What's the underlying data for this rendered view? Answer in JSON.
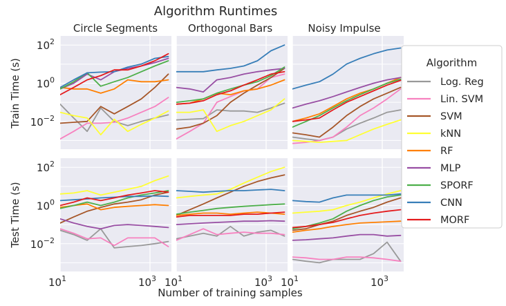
{
  "chart_data": {
    "type": "line",
    "title": "Algorithm Runtimes",
    "xlabel": "Number of training samples",
    "x_scale": "log",
    "y_scale": "log",
    "xlim": [
      10,
      3000
    ],
    "ylim": [
      0.00035,
      300
    ],
    "x_ticks": [
      {
        "base": "10",
        "exp": "1",
        "value": 10
      },
      {
        "base": "10",
        "exp": "3",
        "value": 1000
      }
    ],
    "y_ticks": [
      {
        "base": "10",
        "exp": "−2",
        "value": 0.01
      },
      {
        "base": "10",
        "exp": "0",
        "value": 1
      },
      {
        "base": "10",
        "exp": "2",
        "value": 100
      }
    ],
    "x": [
      10,
      20,
      40,
      80,
      160,
      320,
      640,
      1280,
      2560
    ],
    "columns": [
      "Circle Segments",
      "Orthogonal Bars",
      "Noisy Impulse"
    ],
    "rows": [
      "Train Time (s)",
      "Test Time (s)"
    ],
    "grid": true,
    "legend": {
      "title": "Algorithm",
      "placement": "right",
      "entries": [
        {
          "name": "Log. Reg",
          "color": "#999999"
        },
        {
          "name": "Lin. SVM",
          "color": "#f781bf"
        },
        {
          "name": "SVM",
          "color": "#a65628"
        },
        {
          "name": "kNN",
          "color": "#ffff33"
        },
        {
          "name": "RF",
          "color": "#ff7f00"
        },
        {
          "name": "MLP",
          "color": "#984ea3"
        },
        {
          "name": "SPORF",
          "color": "#4daf4a"
        },
        {
          "name": "CNN",
          "color": "#377eb8"
        },
        {
          "name": "MORF",
          "color": "#e41a1c"
        }
      ]
    },
    "panels": [
      {
        "row": 0,
        "col": 0,
        "series": [
          {
            "name": "Log. Reg",
            "values": [
              0.08,
              0.015,
              0.003,
              0.05,
              0.01,
              0.006,
              0.01,
              0.015,
              0.022
            ]
          },
          {
            "name": "Lin. SVM",
            "values": [
              0.0012,
              0.003,
              0.008,
              0.008,
              0.009,
              0.015,
              0.03,
              0.06,
              0.18
            ]
          },
          {
            "name": "SVM",
            "values": [
              0.008,
              0.009,
              0.01,
              0.06,
              0.025,
              0.06,
              0.15,
              0.6,
              3.0
            ]
          },
          {
            "name": "kNN",
            "values": [
              0.03,
              0.02,
              0.015,
              0.002,
              0.013,
              0.003,
              0.007,
              0.015,
              0.035
            ]
          },
          {
            "name": "RF",
            "values": [
              0.6,
              0.5,
              0.5,
              0.3,
              0.5,
              1.5,
              1.2,
              1.2,
              1.5
            ]
          },
          {
            "name": "MLP",
            "values": [
              0.5,
              1.0,
              3.0,
              1.5,
              4.0,
              6.0,
              8.0,
              12.0,
              20.0
            ]
          },
          {
            "name": "SPORF",
            "values": [
              0.5,
              1.2,
              3.5,
              0.7,
              1.2,
              2.0,
              4.0,
              8.0,
              15.0
            ]
          },
          {
            "name": "CNN",
            "values": [
              0.6,
              1.5,
              3.5,
              3.8,
              4.0,
              7.0,
              10.0,
              20.0,
              25.0
            ]
          },
          {
            "name": "MORF",
            "values": [
              0.25,
              0.6,
              1.5,
              2.5,
              5.0,
              5.0,
              8.0,
              15.0,
              35.0
            ]
          }
        ]
      },
      {
        "row": 0,
        "col": 1,
        "series": [
          {
            "name": "Log. Reg",
            "values": [
              0.012,
              0.013,
              0.014,
              0.04,
              0.035,
              0.035,
              0.03,
              0.05,
              0.09
            ]
          },
          {
            "name": "Lin. SVM",
            "values": [
              0.0012,
              0.003,
              0.008,
              0.1,
              0.2,
              0.4,
              0.5,
              2.0,
              3.0
            ]
          },
          {
            "name": "SVM",
            "values": [
              0.004,
              0.005,
              0.008,
              0.02,
              0.1,
              0.3,
              0.8,
              2.0,
              6.0
            ]
          },
          {
            "name": "kNN",
            "values": [
              0.03,
              0.03,
              0.04,
              0.003,
              0.006,
              0.01,
              0.02,
              0.04,
              0.15
            ]
          },
          {
            "name": "RF",
            "values": [
              0.08,
              0.09,
              0.15,
              0.3,
              0.25,
              0.4,
              0.5,
              0.8,
              1.5
            ]
          },
          {
            "name": "MLP",
            "values": [
              0.6,
              0.5,
              0.35,
              1.5,
              2.0,
              3.0,
              4.0,
              5.0,
              6.0
            ]
          },
          {
            "name": "SPORF",
            "values": [
              0.1,
              0.12,
              0.15,
              0.3,
              0.5,
              0.8,
              1.2,
              2.5,
              7.0
            ]
          },
          {
            "name": "CNN",
            "values": [
              4.0,
              4.0,
              4.0,
              5.0,
              6.0,
              8.0,
              15.0,
              50.0,
              100.0
            ]
          },
          {
            "name": "MORF",
            "values": [
              0.08,
              0.09,
              0.12,
              0.25,
              0.4,
              0.8,
              1.5,
              3.0,
              4.0
            ]
          }
        ]
      },
      {
        "row": 0,
        "col": 2,
        "series": [
          {
            "name": "Log. Reg",
            "values": [
              0.0015,
              0.0012,
              0.001,
              0.0015,
              0.004,
              0.008,
              0.015,
              0.03,
              0.04
            ]
          },
          {
            "name": "Lin. SVM",
            "values": [
              0.0007,
              0.0008,
              0.001,
              0.0015,
              0.005,
              0.02,
              0.05,
              0.15,
              0.5
            ]
          },
          {
            "name": "SVM",
            "values": [
              0.0025,
              0.002,
              0.0015,
              0.005,
              0.02,
              0.06,
              0.15,
              0.3,
              0.6
            ]
          },
          {
            "name": "kNN",
            "values": [
              0.001,
              0.0009,
              0.0008,
              0.0009,
              0.001,
              0.002,
              0.004,
              0.007,
              0.012
            ]
          },
          {
            "name": "RF",
            "values": [
              0.01,
              0.015,
              0.025,
              0.06,
              0.15,
              0.3,
              0.5,
              1.0,
              2.0
            ]
          },
          {
            "name": "MLP",
            "values": [
              0.05,
              0.08,
              0.12,
              0.2,
              0.35,
              0.6,
              1.0,
              1.5,
              2.0
            ]
          },
          {
            "name": "SPORF",
            "values": [
              0.005,
              0.01,
              0.02,
              0.05,
              0.12,
              0.25,
              0.5,
              1.0,
              1.6
            ]
          },
          {
            "name": "CNN",
            "values": [
              0.5,
              0.8,
              1.2,
              3.0,
              10.0,
              20.0,
              35.0,
              55.0,
              70.0
            ]
          },
          {
            "name": "MORF",
            "values": [
              0.01,
              0.012,
              0.015,
              0.04,
              0.1,
              0.2,
              0.4,
              0.8,
              1.4
            ]
          }
        ]
      },
      {
        "row": 1,
        "col": 0,
        "series": [
          {
            "name": "Log. Reg",
            "values": [
              0.05,
              0.03,
              0.015,
              0.06,
              0.006,
              0.007,
              0.008,
              0.01,
              0.013
            ]
          },
          {
            "name": "Lin. SVM",
            "values": [
              0.06,
              0.035,
              0.018,
              0.02,
              0.008,
              0.02,
              0.02,
              0.02,
              0.007
            ]
          },
          {
            "name": "SVM",
            "values": [
              0.12,
              0.25,
              0.5,
              0.8,
              1.2,
              1.5,
              2.0,
              3.5,
              5.0
            ]
          },
          {
            "name": "kNN",
            "values": [
              4.0,
              4.5,
              6.0,
              3.5,
              5.0,
              7.0,
              10.0,
              20.0,
              35.0
            ]
          },
          {
            "name": "RF",
            "values": [
              0.8,
              1.0,
              1.2,
              0.6,
              0.8,
              0.9,
              1.0,
              1.1,
              1.0
            ]
          },
          {
            "name": "MLP",
            "values": [
              0.2,
              0.12,
              0.08,
              0.06,
              0.09,
              0.1,
              0.09,
              0.08,
              0.07
            ]
          },
          {
            "name": "SPORF",
            "values": [
              0.7,
              1.0,
              1.5,
              1.0,
              1.5,
              2.5,
              3.5,
              4.5,
              6.0
            ]
          },
          {
            "name": "CNN",
            "values": [
              1.8,
              2.0,
              2.2,
              2.5,
              2.7,
              3.0,
              3.0,
              3.2,
              3.0
            ]
          },
          {
            "name": "MORF",
            "values": [
              1.0,
              1.5,
              2.5,
              1.8,
              2.5,
              3.5,
              4.5,
              6.0,
              5.0
            ]
          }
        ]
      },
      {
        "row": 1,
        "col": 1,
        "series": [
          {
            "name": "Log. Reg",
            "values": [
              0.018,
              0.025,
              0.035,
              0.025,
              0.08,
              0.025,
              0.04,
              0.05,
              0.025
            ]
          },
          {
            "name": "Lin. SVM",
            "values": [
              0.015,
              0.03,
              0.06,
              0.03,
              0.035,
              0.04,
              0.035,
              0.035,
              0.03
            ]
          },
          {
            "name": "SVM",
            "values": [
              0.3,
              0.6,
              1.2,
              2.5,
              5.0,
              10.0,
              18.0,
              28.0,
              40.0
            ]
          },
          {
            "name": "kNN",
            "values": [
              2.5,
              3.0,
              3.5,
              4.0,
              7.0,
              15.0,
              30.0,
              60.0,
              100.0
            ]
          },
          {
            "name": "RF",
            "values": [
              0.3,
              0.35,
              0.4,
              0.4,
              0.35,
              0.4,
              0.45,
              0.4,
              0.35
            ]
          },
          {
            "name": "MLP",
            "values": [
              0.1,
              0.11,
              0.12,
              0.13,
              0.14,
              0.15,
              0.15,
              0.16,
              0.15
            ]
          },
          {
            "name": "SPORF",
            "values": [
              0.35,
              0.45,
              0.55,
              0.7,
              0.8,
              0.9,
              1.0,
              1.1,
              1.2
            ]
          },
          {
            "name": "CNN",
            "values": [
              6.0,
              5.5,
              5.0,
              5.5,
              6.0,
              6.0,
              6.5,
              7.0,
              6.0
            ]
          },
          {
            "name": "MORF",
            "values": [
              0.25,
              0.3,
              0.3,
              0.3,
              0.3,
              0.35,
              0.35,
              0.4,
              0.45
            ]
          }
        ]
      },
      {
        "row": 1,
        "col": 2,
        "series": [
          {
            "name": "Log. Reg",
            "values": [
              0.0015,
              0.0012,
              0.001,
              0.0015,
              0.0015,
              0.0015,
              0.003,
              0.012,
              0.0012
            ]
          },
          {
            "name": "Lin. SVM",
            "values": [
              0.002,
              0.0018,
              0.0015,
              0.0015,
              0.002,
              0.002,
              0.0018,
              0.0015,
              0.0012
            ]
          },
          {
            "name": "SVM",
            "values": [
              0.05,
              0.06,
              0.1,
              0.15,
              0.3,
              0.5,
              0.8,
              1.5,
              2.5
            ]
          },
          {
            "name": "kNN",
            "values": [
              0.4,
              0.45,
              0.5,
              0.6,
              1.0,
              1.5,
              2.5,
              4.0,
              6.0
            ]
          },
          {
            "name": "RF",
            "values": [
              0.04,
              0.05,
              0.06,
              0.08,
              0.1,
              0.12,
              0.13,
              0.14,
              0.15
            ]
          },
          {
            "name": "MLP",
            "values": [
              0.015,
              0.016,
              0.018,
              0.02,
              0.025,
              0.03,
              0.03,
              0.025,
              0.027
            ]
          },
          {
            "name": "SPORF",
            "values": [
              0.06,
              0.08,
              0.12,
              0.2,
              0.5,
              1.0,
              1.8,
              2.8,
              3.5
            ]
          },
          {
            "name": "CNN",
            "values": [
              1.8,
              1.6,
              1.5,
              2.5,
              3.5,
              3.5,
              3.5,
              3.5,
              4.0
            ]
          },
          {
            "name": "MORF",
            "values": [
              0.07,
              0.08,
              0.1,
              0.13,
              0.2,
              0.3,
              0.4,
              0.5,
              0.6
            ]
          }
        ]
      }
    ]
  }
}
